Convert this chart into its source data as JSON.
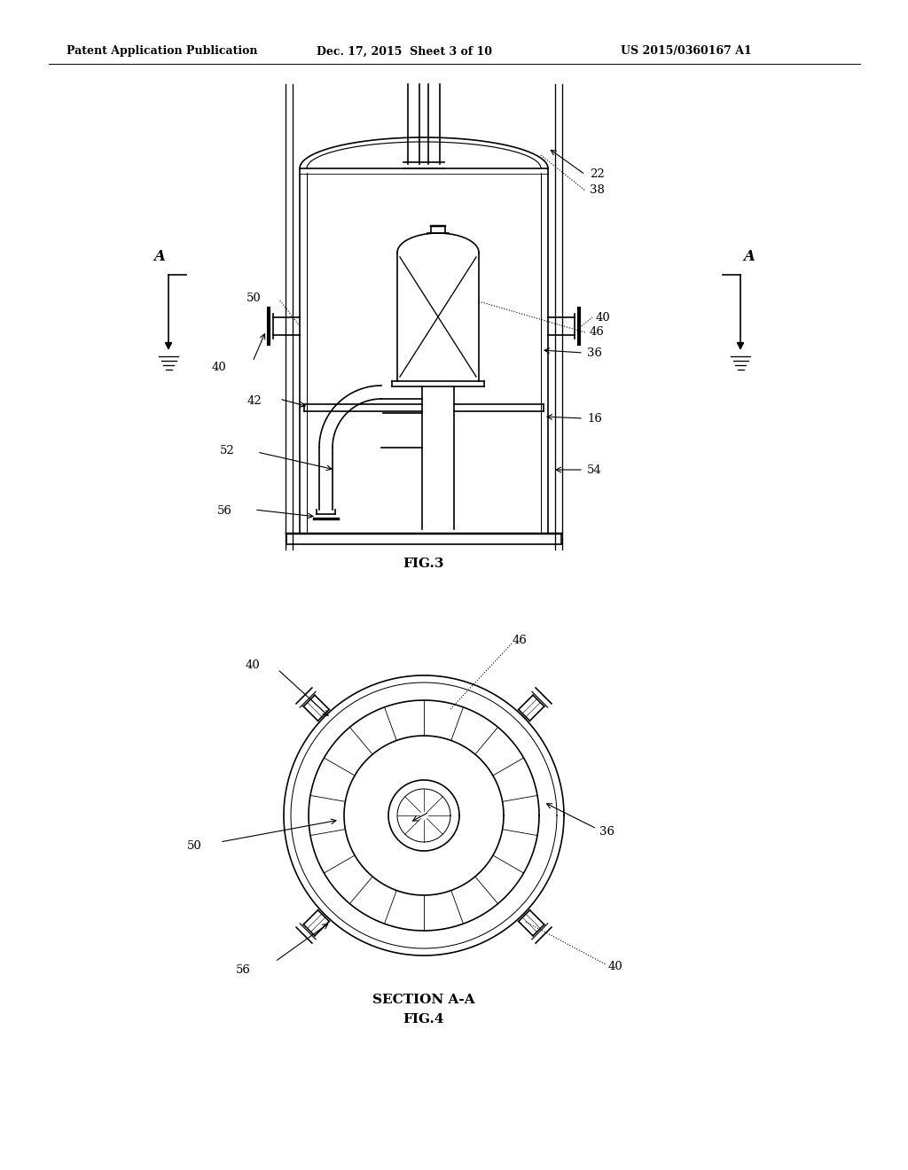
{
  "bg_color": "#ffffff",
  "line_color": "#000000",
  "header_text": "Patent Application Publication",
  "header_date": "Dec. 17, 2015  Sheet 3 of 10",
  "header_patent": "US 2015/0360167 A1",
  "fig3_label": "FIG.3",
  "fig4_label": "FIG.4",
  "section_label": "SECTION A-A"
}
